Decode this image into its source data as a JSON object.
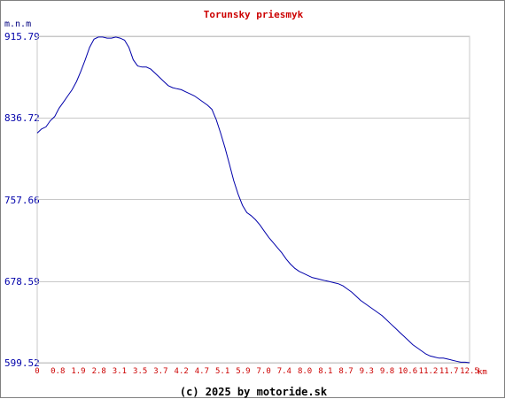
{
  "chart_data": {
    "type": "line",
    "title": "Torunsky priesmyk",
    "ylabel": "m.n.m",
    "xunit": "km",
    "ylim": [
      599.52,
      915.79
    ],
    "yticks": [
      "915.79",
      "836.72",
      "757.66",
      "678.59",
      "599.52"
    ],
    "xticks": [
      "0",
      "0.8",
      "1.9",
      "2.8",
      "3.1",
      "3.5",
      "3.7",
      "4.2",
      "4.7",
      "5.1",
      "5.9",
      "7.0",
      "7.4",
      "8.0",
      "8.1",
      "8.7",
      "9.3",
      "9.8",
      "10.6",
      "11.2",
      "11.7",
      "12.5"
    ],
    "grid": true,
    "colors": {
      "title": "#cc0000",
      "line": "#0000aa",
      "grid": "#c8c8c8",
      "xtick": "#cc0000",
      "ytick": "#0000aa"
    },
    "series": [
      {
        "profile_index": [
          0,
          0.0101,
          0.0202,
          0.0303,
          0.0404,
          0.0505,
          0.0606,
          0.0707,
          0.0808,
          0.0909,
          0.101,
          0.1111,
          0.1212,
          0.1313,
          0.1414,
          0.1515,
          0.1616,
          0.1717,
          0.1818,
          0.1919,
          0.202,
          0.2121,
          0.2222,
          0.2323,
          0.2424,
          0.2525,
          0.2626,
          0.2727,
          0.2828,
          0.2929,
          0.303,
          0.3131,
          0.3232,
          0.3333,
          0.3434,
          0.3535,
          0.3636,
          0.3737,
          0.3838,
          0.3939,
          0.404,
          0.4141,
          0.4242,
          0.4343,
          0.4444,
          0.4545,
          0.4646,
          0.4747,
          0.4848,
          0.4949,
          0.505,
          0.5152,
          0.5253,
          0.5354,
          0.5455,
          0.5556,
          0.5657,
          0.5758,
          0.5859,
          0.596,
          0.6061,
          0.6162,
          0.6263,
          0.6364,
          0.6465,
          0.6566,
          0.6667,
          0.6768,
          0.6869,
          0.697,
          0.7071,
          0.7172,
          0.7273,
          0.7374,
          0.7475,
          0.7576,
          0.7677,
          0.7778,
          0.7879,
          0.798,
          0.8081,
          0.8182,
          0.8283,
          0.8384,
          0.8485,
          0.8586,
          0.8687,
          0.8788,
          0.8889,
          0.899,
          0.9091,
          0.9192,
          0.9293,
          0.9394,
          0.9495,
          0.9596,
          0.9697,
          0.9798,
          0.9899,
          1.0
        ],
        "values": [
          822,
          826,
          828,
          834,
          838,
          846,
          852,
          858,
          864,
          872,
          882,
          893,
          905,
          913,
          915,
          915,
          914,
          914,
          915,
          914,
          912,
          905,
          893,
          887,
          886,
          886,
          884,
          880,
          876,
          872,
          868,
          866,
          865,
          864,
          862,
          860,
          858,
          855,
          852,
          849,
          845,
          835,
          822,
          808,
          792,
          776,
          763,
          752,
          745,
          742,
          738,
          733,
          727,
          721,
          716,
          711,
          706,
          700,
          695,
          691,
          688,
          686,
          684,
          682,
          681,
          680,
          679,
          678,
          677,
          676,
          674,
          671,
          668,
          664,
          660,
          657,
          654,
          651,
          648,
          645,
          641,
          637,
          633,
          629,
          625,
          621,
          617,
          614,
          611,
          608,
          606,
          605,
          604,
          604,
          603,
          602,
          601,
          600,
          600,
          599.52
        ]
      }
    ]
  },
  "footer": "(c) 2025 by motoride.sk"
}
